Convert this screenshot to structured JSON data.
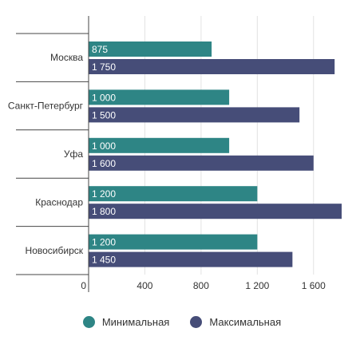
{
  "chart_data": {
    "type": "bar",
    "orientation": "horizontal",
    "categories": [
      "Москва",
      "Санкт-Петербург",
      "Уфа",
      "Краснодар",
      "Новосибирск"
    ],
    "series": [
      {
        "name": "Минимальная",
        "color": "#2e8585",
        "values": [
          875,
          1000,
          1000,
          1200,
          1200
        ],
        "labels": [
          "875",
          "1 000",
          "1 000",
          "1 200",
          "1 200"
        ]
      },
      {
        "name": "Максимальная",
        "color": "#464d78",
        "values": [
          1750,
          1500,
          1600,
          1800,
          1450
        ],
        "labels": [
          "1 750",
          "1 500",
          "1 600",
          "1 800",
          "1 450"
        ]
      }
    ],
    "xlim": [
      0,
      1800
    ],
    "x_ticks": [
      0,
      400,
      800,
      1200,
      1600
    ],
    "x_tick_labels": [
      "0",
      "400",
      "800",
      "1 200",
      "1 600"
    ],
    "grid": true,
    "legend_position": "bottom"
  }
}
